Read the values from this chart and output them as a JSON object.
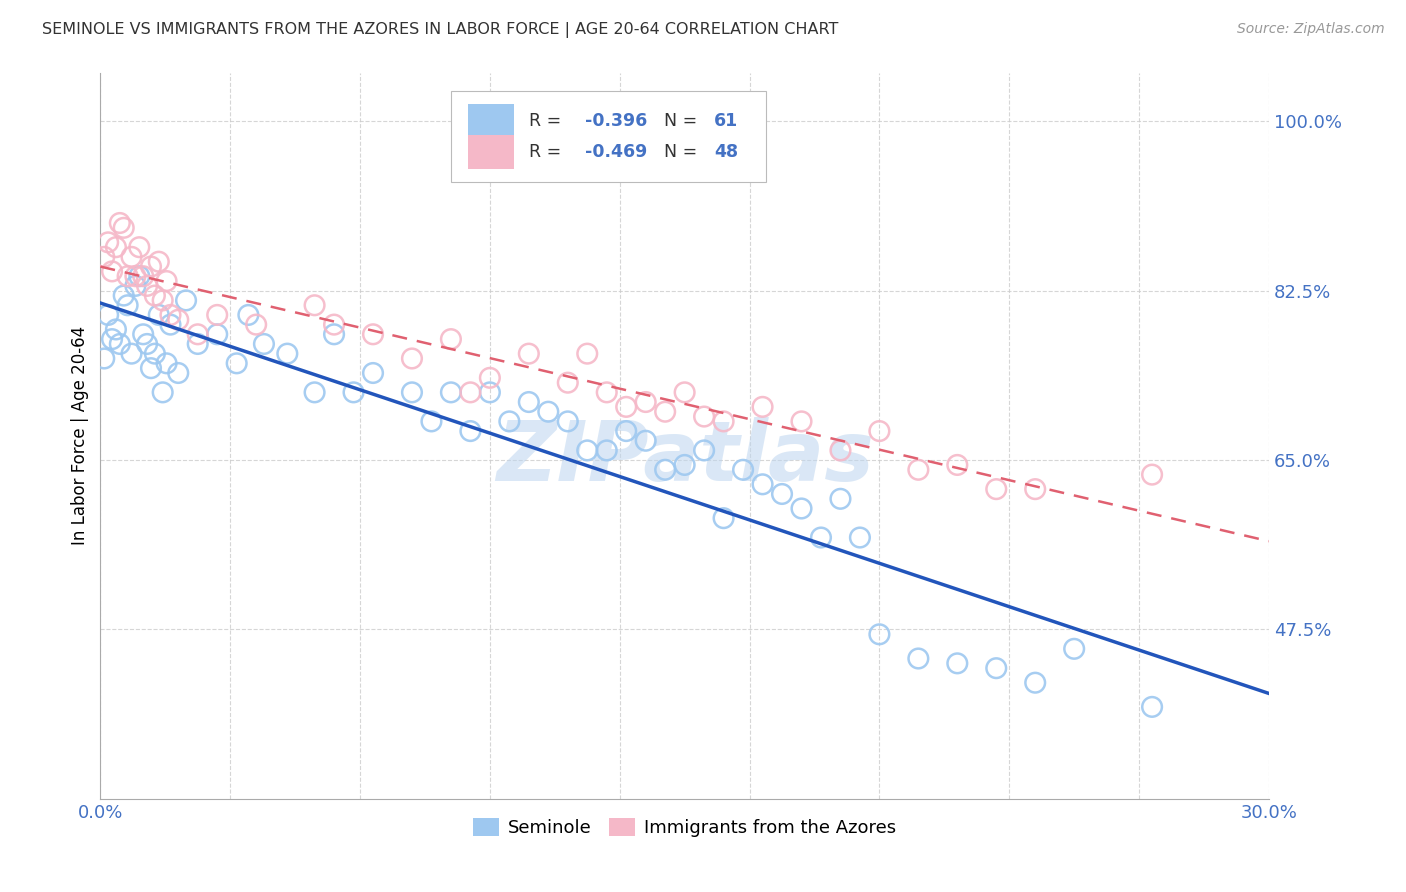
{
  "title": "SEMINOLE VS IMMIGRANTS FROM THE AZORES IN LABOR FORCE | AGE 20-64 CORRELATION CHART",
  "source": "Source: ZipAtlas.com",
  "ylabel": "In Labor Force | Age 20-64",
  "xlim": [
    0.0,
    0.3
  ],
  "ylim": [
    0.3,
    1.05
  ],
  "yticks": [
    0.475,
    0.65,
    0.825,
    1.0
  ],
  "ytick_labels": [
    "47.5%",
    "65.0%",
    "82.5%",
    "100.0%"
  ],
  "xticks": [
    0.0,
    0.03333,
    0.06667,
    0.1,
    0.13333,
    0.16667,
    0.2,
    0.23333,
    0.26667,
    0.3
  ],
  "xtick_labels_show": [
    "0.0%",
    "",
    "",
    "",
    "",
    "",
    "",
    "",
    "",
    "30.0%"
  ],
  "legend_R1": "-0.396",
  "legend_N1": "61",
  "legend_R2": "-0.469",
  "legend_N2": "48",
  "blue_dot_color": "#9EC8F0",
  "pink_dot_color": "#F5B8C8",
  "blue_line_color": "#2255BB",
  "pink_line_color": "#E06070",
  "axis_color": "#4472C4",
  "watermark": "ZIPatlas",
  "seminole_x": [
    0.001,
    0.002,
    0.003,
    0.004,
    0.005,
    0.006,
    0.007,
    0.008,
    0.009,
    0.01,
    0.011,
    0.012,
    0.013,
    0.014,
    0.015,
    0.016,
    0.017,
    0.018,
    0.02,
    0.022,
    0.025,
    0.03,
    0.035,
    0.038,
    0.042,
    0.048,
    0.055,
    0.06,
    0.065,
    0.07,
    0.08,
    0.085,
    0.09,
    0.095,
    0.1,
    0.105,
    0.11,
    0.115,
    0.12,
    0.125,
    0.13,
    0.135,
    0.14,
    0.145,
    0.15,
    0.155,
    0.16,
    0.165,
    0.17,
    0.175,
    0.18,
    0.185,
    0.19,
    0.195,
    0.2,
    0.21,
    0.22,
    0.23,
    0.24,
    0.25,
    0.27
  ],
  "seminole_y": [
    0.755,
    0.8,
    0.775,
    0.785,
    0.77,
    0.82,
    0.81,
    0.76,
    0.83,
    0.84,
    0.78,
    0.77,
    0.745,
    0.76,
    0.8,
    0.72,
    0.75,
    0.79,
    0.74,
    0.815,
    0.77,
    0.78,
    0.75,
    0.8,
    0.77,
    0.76,
    0.72,
    0.78,
    0.72,
    0.74,
    0.72,
    0.69,
    0.72,
    0.68,
    0.72,
    0.69,
    0.71,
    0.7,
    0.69,
    0.66,
    0.66,
    0.68,
    0.67,
    0.64,
    0.645,
    0.66,
    0.59,
    0.64,
    0.625,
    0.615,
    0.6,
    0.57,
    0.61,
    0.57,
    0.47,
    0.445,
    0.44,
    0.435,
    0.42,
    0.455,
    0.395
  ],
  "azores_x": [
    0.001,
    0.002,
    0.003,
    0.004,
    0.005,
    0.006,
    0.007,
    0.008,
    0.009,
    0.01,
    0.011,
    0.012,
    0.013,
    0.014,
    0.015,
    0.016,
    0.017,
    0.018,
    0.02,
    0.025,
    0.03,
    0.04,
    0.055,
    0.06,
    0.07,
    0.08,
    0.09,
    0.095,
    0.1,
    0.11,
    0.12,
    0.125,
    0.13,
    0.135,
    0.14,
    0.145,
    0.15,
    0.155,
    0.16,
    0.17,
    0.18,
    0.19,
    0.2,
    0.21,
    0.22,
    0.23,
    0.24,
    0.27
  ],
  "azores_y": [
    0.86,
    0.875,
    0.845,
    0.87,
    0.895,
    0.89,
    0.84,
    0.86,
    0.84,
    0.87,
    0.84,
    0.83,
    0.85,
    0.82,
    0.855,
    0.815,
    0.835,
    0.8,
    0.795,
    0.78,
    0.8,
    0.79,
    0.81,
    0.79,
    0.78,
    0.755,
    0.775,
    0.72,
    0.735,
    0.76,
    0.73,
    0.76,
    0.72,
    0.705,
    0.71,
    0.7,
    0.72,
    0.695,
    0.69,
    0.705,
    0.69,
    0.66,
    0.68,
    0.64,
    0.645,
    0.62,
    0.62,
    0.635
  ]
}
